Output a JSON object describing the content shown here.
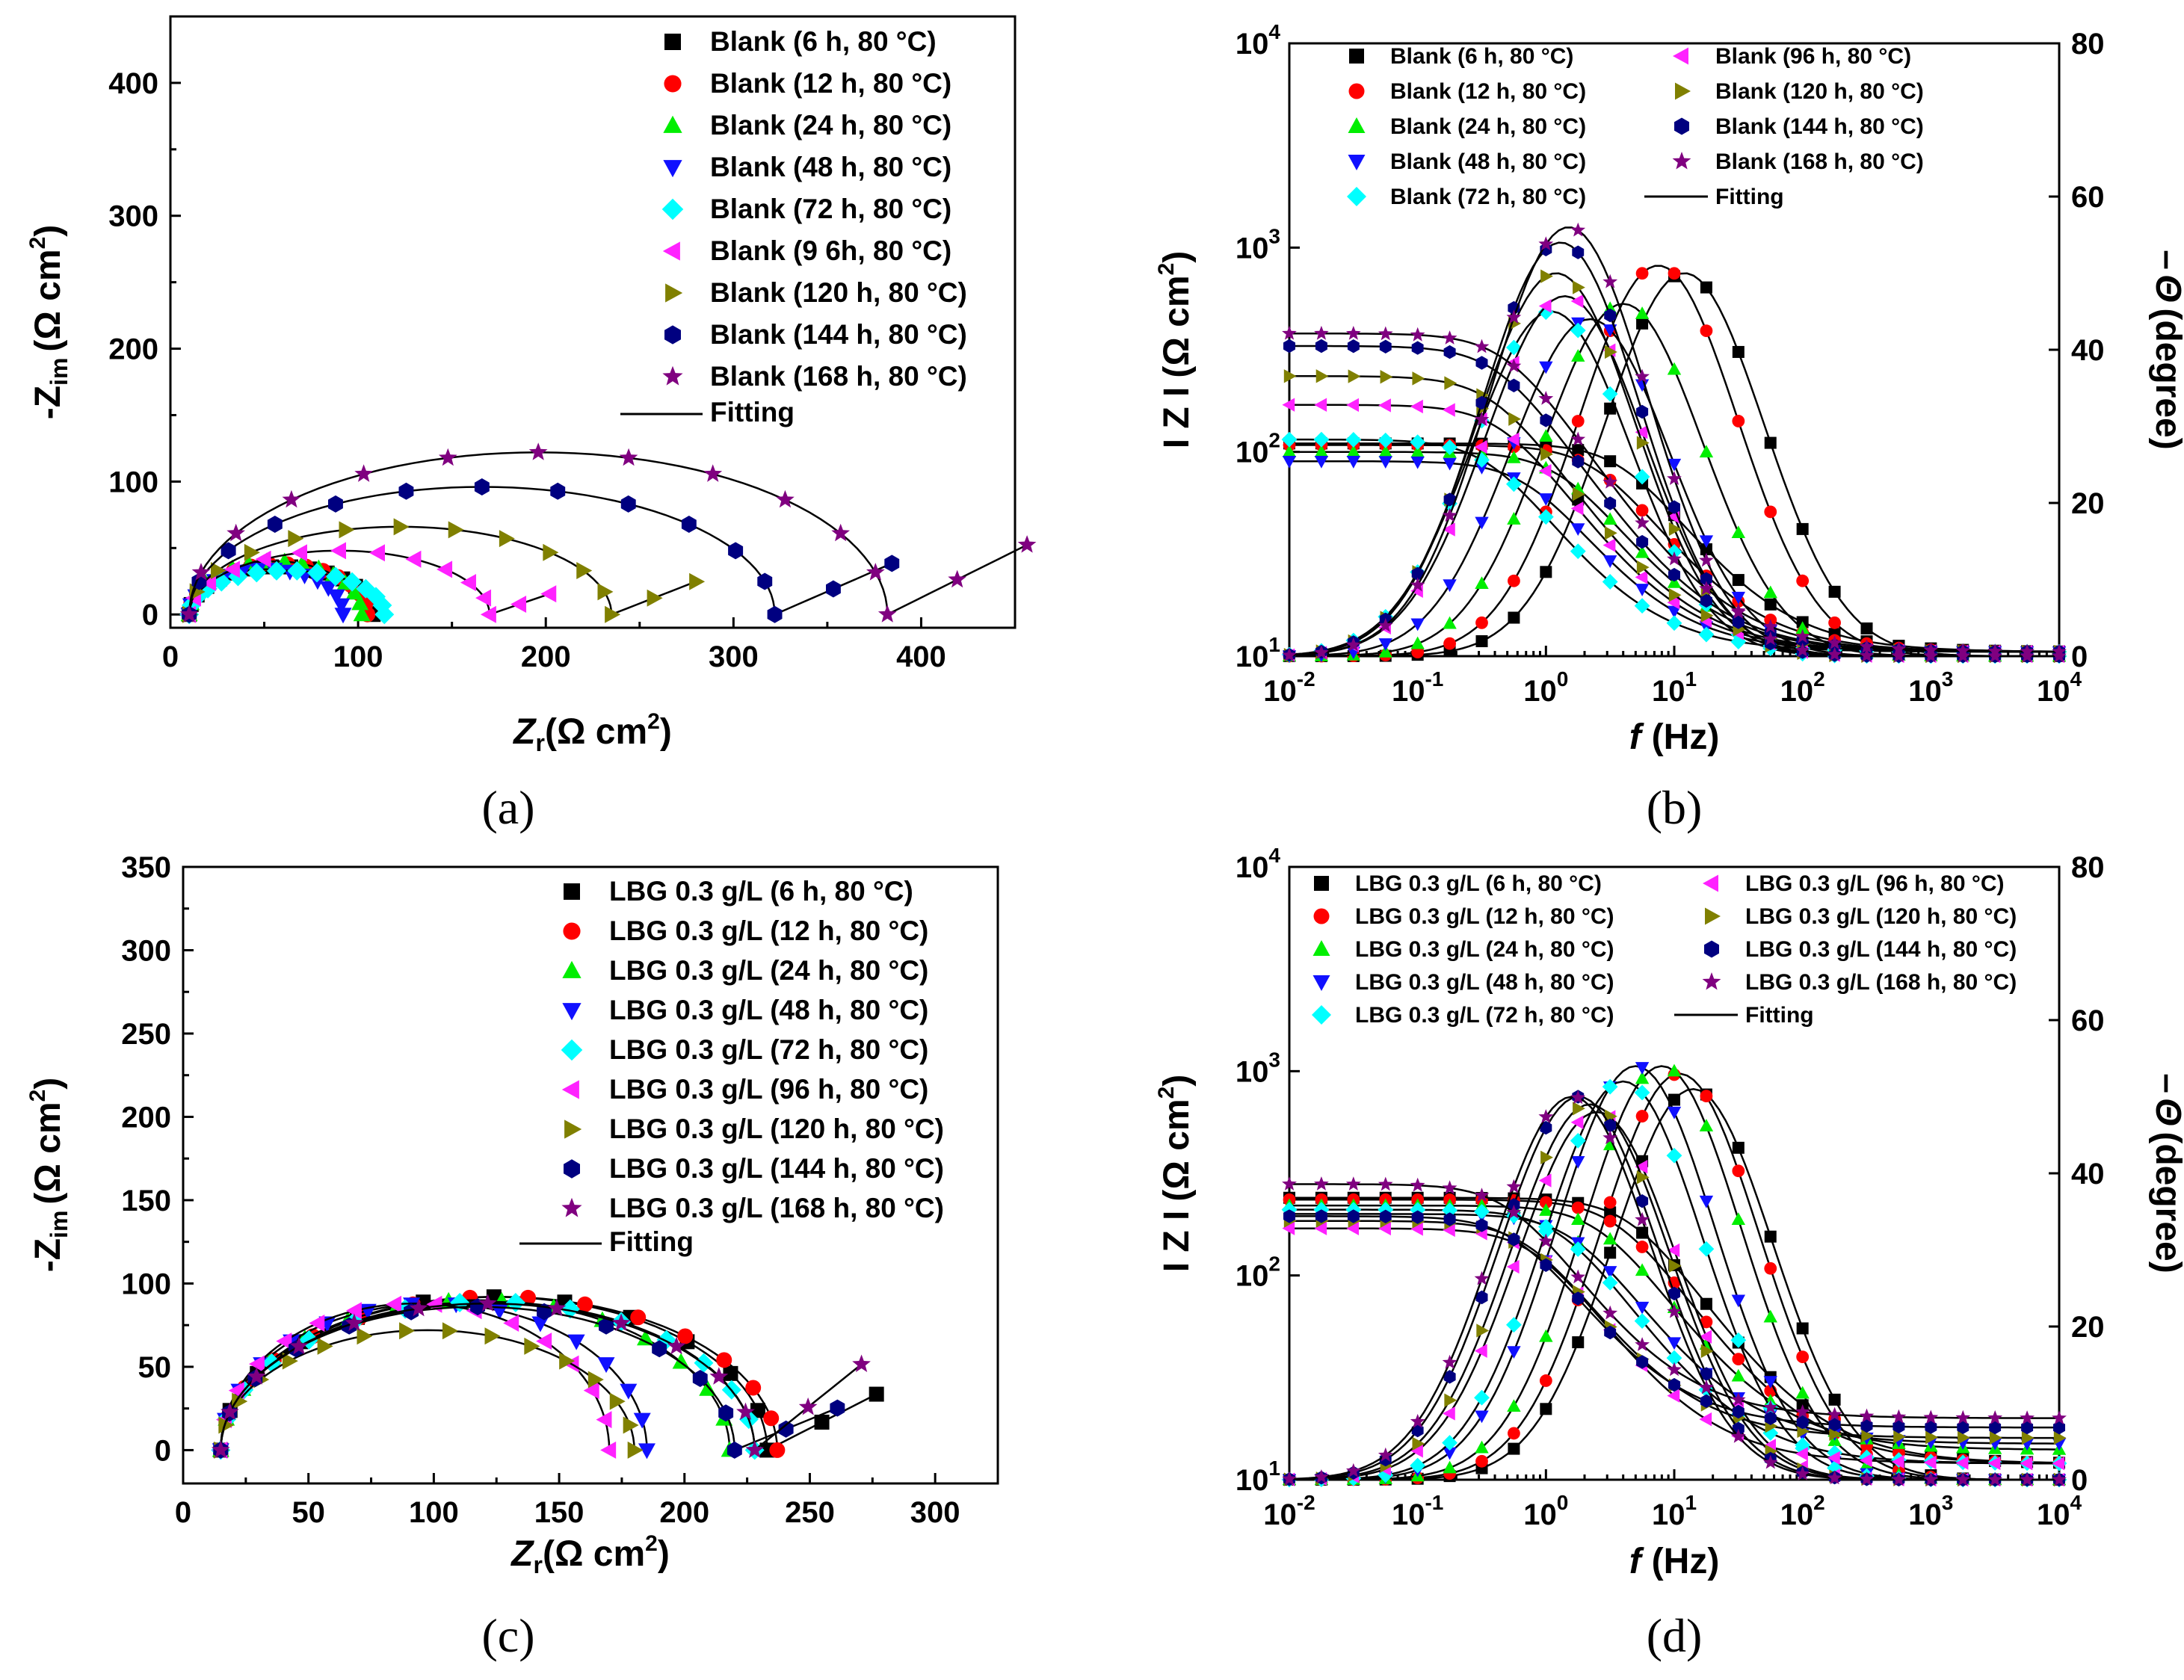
{
  "colors": {
    "black": "#000000",
    "red": "#ff0000",
    "green": "#00ee00",
    "blue": "#1010ff",
    "cyan": "#00ffff",
    "magenta": "#ff22ff",
    "olive": "#808000",
    "navy": "#000080",
    "purple": "#800080"
  },
  "chart_data": [
    {
      "type": "scatter",
      "panel_label": "(a)",
      "xlabel_main": "Z",
      "xlabel_sub": "r",
      "xlabel_unit": "(Ω cm",
      "xlabel_unit_sup": "2",
      "xlabel_close": ")",
      "ylabel_prefix": "-Z",
      "ylabel_sub": "im",
      "ylabel_unit": "(Ω cm",
      "ylabel_unit_sup": "2",
      "ylabel_close": ")",
      "xlim": [
        0,
        450
      ],
      "ylim": [
        -10,
        450
      ],
      "xticks": [
        "0",
        "100",
        "200",
        "300",
        "400"
      ],
      "yticks": [
        "0",
        "100",
        "200",
        "300",
        "400"
      ],
      "legend": [
        "Blank (6 h, 80 °C)",
        "Blank (12 h, 80 °C)",
        "Blank (24 h, 80 °C)",
        "Blank (48 h, 80 °C)",
        "Blank (72 h, 80 °C)",
        "Blank (9 6h, 80 °C)",
        "Blank (120 h, 80 °C)",
        "Blank (144 h, 80 °C)",
        "Blank (168 h, 80 °C)"
      ],
      "fit_label": "Fitting",
      "series": [
        {
          "name": "6 h",
          "color": "black",
          "marker": "square",
          "Rs": 10,
          "Rct": 98,
          "max": 36,
          "tail": 0
        },
        {
          "name": "12 h",
          "color": "red",
          "marker": "circle",
          "Rs": 10,
          "Rct": 95,
          "max": 38,
          "tail": 0
        },
        {
          "name": "24 h",
          "color": "green",
          "marker": "triangle-up",
          "Rs": 10,
          "Rct": 92,
          "max": 40,
          "tail": 0
        },
        {
          "name": "48 h",
          "color": "blue",
          "marker": "triangle-down",
          "Rs": 10,
          "Rct": 82,
          "max": 34,
          "tail": 0
        },
        {
          "name": "72 h",
          "color": "cyan",
          "marker": "diamond",
          "Rs": 10,
          "Rct": 104,
          "max": 33,
          "tail": 0
        },
        {
          "name": "96 h",
          "color": "magenta",
          "marker": "triangle-left",
          "Rs": 10,
          "Rct": 160,
          "max": 48,
          "tail": 0.22
        },
        {
          "name": "120 h",
          "color": "olive",
          "marker": "triangle-right",
          "Rs": 10,
          "Rct": 225,
          "max": 66,
          "tail": 0.25
        },
        {
          "name": "144 h",
          "color": "navy",
          "marker": "hexagon",
          "Rs": 10,
          "Rct": 312,
          "max": 96,
          "tail": 0.28
        },
        {
          "name": "168 h",
          "color": "purple",
          "marker": "star",
          "Rs": 10,
          "Rct": 372,
          "max": 122,
          "tail": 0.32
        }
      ]
    },
    {
      "type": "line",
      "panel_label": "(b)",
      "xlabel_main": "f",
      "xlabel_unit": "(Hz)",
      "ylabel_left": "I Z I",
      "ylabel_left_unit": "(Ω cm",
      "ylabel_left_sup": "2",
      "ylabel_left_close": ")",
      "ylabel_right_prefix": "–",
      "ylabel_right_theta": "Θ",
      "ylabel_right_unit": "(degree)",
      "xlim_log": [
        -2,
        4
      ],
      "ylim_log": [
        1,
        4
      ],
      "y2lim": [
        0,
        80
      ],
      "xtick_exponents": [
        "-2",
        "-1",
        "0",
        "1",
        "2",
        "3",
        "4"
      ],
      "ytick_exponents": [
        "1",
        "2",
        "3",
        "4"
      ],
      "tick_base": "10",
      "y2ticks": [
        "0",
        "20",
        "40",
        "60",
        "80"
      ],
      "legend_col1": [
        "Blank (6 h, 80 °C)",
        "Blank (12 h, 80 °C)",
        "Blank (24 h, 80 °C)",
        "Blank (48 h, 80 °C)",
        "Blank (72 h, 80 °C)"
      ],
      "legend_col2": [
        "Blank (96 h, 80 °C)",
        "Blank (120 h, 80 °C)",
        "Blank (144 h, 80 °C)",
        "Blank (168 h, 80 °C)"
      ],
      "fit_label": "Fitting",
      "series": [
        {
          "name": "6 h",
          "color": "black",
          "marker": "square",
          "Rs": 10.5,
          "Rp": 110,
          "phase_max": 50,
          "phase_fc": 12
        },
        {
          "name": "12 h",
          "color": "red",
          "marker": "circle",
          "Rs": 10.5,
          "Rp": 108,
          "phase_max": 51,
          "phase_fc": 7.5
        },
        {
          "name": "24 h",
          "color": "green",
          "marker": "triangle-up",
          "Rs": 10.5,
          "Rp": 100,
          "phase_max": 46,
          "phase_fc": 4
        },
        {
          "name": "48 h",
          "color": "blue",
          "marker": "triangle-down",
          "Rs": 10.5,
          "Rp": 90,
          "phase_max": 44,
          "phase_fc": 2.2
        },
        {
          "name": "72 h",
          "color": "cyan",
          "marker": "diamond",
          "Rs": 10.5,
          "Rp": 115,
          "phase_max": 45,
          "phase_fc": 1.1
        },
        {
          "name": "96 h",
          "color": "magenta",
          "marker": "triangle-left",
          "Rs": 10.5,
          "Rp": 170,
          "phase_max": 47,
          "phase_fc": 1.4
        },
        {
          "name": "120 h",
          "color": "olive",
          "marker": "triangle-right",
          "Rs": 10.5,
          "Rp": 235,
          "phase_max": 50,
          "phase_fc": 1.2
        },
        {
          "name": "144 h",
          "color": "navy",
          "marker": "hexagon",
          "Rs": 10.5,
          "Rp": 330,
          "phase_max": 54,
          "phase_fc": 1.3
        },
        {
          "name": "168 h",
          "color": "purple",
          "marker": "star",
          "Rs": 10.5,
          "Rp": 380,
          "phase_max": 56,
          "phase_fc": 1.5
        }
      ]
    },
    {
      "type": "scatter",
      "panel_label": "(c)",
      "xlabel_main": "Z",
      "xlabel_sub": "r",
      "xlabel_unit": "(Ω cm",
      "xlabel_unit_sup": "2",
      "xlabel_close": ")",
      "ylabel_prefix": "-Z",
      "ylabel_sub": "im",
      "ylabel_unit": "(Ω cm",
      "ylabel_unit_sup": "2",
      "ylabel_close": ")",
      "xlim": [
        0,
        325
      ],
      "ylim": [
        -20,
        350
      ],
      "xticks": [
        "0",
        "50",
        "100",
        "150",
        "200",
        "250",
        "300"
      ],
      "yticks": [
        "0",
        "50",
        "100",
        "150",
        "200",
        "250",
        "300",
        "350"
      ],
      "legend": [
        "LBG 0.3 g/L (6 h, 80 °C)",
        "LBG 0.3 g/L (12 h, 80 °C)",
        "LBG 0.3 g/L (24 h, 80 °C)",
        "LBG 0.3 g/L (48 h, 80 °C)",
        "LBG 0.3 g/L (72 h, 80 °C)",
        "LBG 0.3 g/L (96 h, 80 °C)",
        "LBG 0.3 g/L (120 h, 80 °C)",
        "LBG 0.3 g/L (144 h, 80 °C)",
        "LBG 0.3 g/L (168 h, 80 °C)"
      ],
      "fit_label": "Fitting",
      "series": [
        {
          "name": "6 h",
          "color": "black",
          "marker": "square",
          "Rs": 15,
          "Rct": 218,
          "max": 92,
          "tail": 0.35
        },
        {
          "name": "12 h",
          "color": "red",
          "marker": "circle",
          "Rs": 15,
          "Rct": 222,
          "max": 92,
          "tail": 0
        },
        {
          "name": "24 h",
          "color": "green",
          "marker": "triangle-up",
          "Rs": 15,
          "Rct": 203,
          "max": 90,
          "tail": 0
        },
        {
          "name": "48 h",
          "color": "blue",
          "marker": "triangle-down",
          "Rs": 15,
          "Rct": 170,
          "max": 88,
          "tail": 0
        },
        {
          "name": "72 h",
          "color": "cyan",
          "marker": "diamond",
          "Rs": 15,
          "Rct": 213,
          "max": 89,
          "tail": 0
        },
        {
          "name": "96 h",
          "color": "magenta",
          "marker": "triangle-left",
          "Rs": 15,
          "Rct": 155,
          "max": 88,
          "tail": 0
        },
        {
          "name": "120 h",
          "color": "olive",
          "marker": "triangle-right",
          "Rs": 15,
          "Rct": 165,
          "max": 72,
          "tail": 0
        },
        {
          "name": "144 h",
          "color": "navy",
          "marker": "hexagon",
          "Rs": 15,
          "Rct": 205,
          "max": 86,
          "tail": 0.28
        },
        {
          "name": "168 h",
          "color": "purple",
          "marker": "star",
          "Rs": 15,
          "Rct": 213,
          "max": 88,
          "tail": 0.55
        }
      ]
    },
    {
      "type": "line",
      "panel_label": "(d)",
      "xlabel_main": "f",
      "xlabel_unit": "(Hz)",
      "ylabel_left": "I Z I",
      "ylabel_left_unit": "(Ω cm",
      "ylabel_left_sup": "2",
      "ylabel_left_close": ")",
      "ylabel_right_prefix": "–",
      "ylabel_right_theta": "Θ",
      "ylabel_right_unit": "(degree)",
      "xlim_log": [
        -2,
        4
      ],
      "ylim_log": [
        1,
        4
      ],
      "y2lim": [
        0,
        80
      ],
      "xtick_exponents": [
        "-2",
        "-1",
        "0",
        "1",
        "2",
        "3",
        "4"
      ],
      "ytick_exponents": [
        "1",
        "2",
        "3",
        "4"
      ],
      "tick_base": "10",
      "y2ticks": [
        "0",
        "20",
        "40",
        "60",
        "80"
      ],
      "legend_col1": [
        "LBG 0.3 g/L (6 h, 80 °C)",
        "LBG 0.3 g/L (12 h, 80 °C)",
        "LBG 0.3 g/L (24 h, 80 °C)",
        "LBG 0.3 g/L (48 h, 80 °C)",
        "LBG 0.3 g/L (72 h, 80 °C)"
      ],
      "legend_col2": [
        "LBG 0.3 g/L (96 h, 80 °C)",
        "LBG 0.3 g/L (120 h, 80 °C)",
        "LBG 0.3 g/L (144 h, 80 °C)",
        "LBG 0.3 g/L (168 h, 80 °C)"
      ],
      "fit_label": "Fitting",
      "series": [
        {
          "name": "6 h",
          "color": "black",
          "marker": "square",
          "Rs": 12,
          "Rp": 240,
          "phase_max": 51,
          "phase_fc": 14
        },
        {
          "name": "12 h",
          "color": "red",
          "marker": "circle",
          "Rs": 12,
          "Rp": 235,
          "phase_max": 53,
          "phase_fc": 11
        },
        {
          "name": "24 h",
          "color": "green",
          "marker": "triangle-up",
          "Rs": 14,
          "Rp": 220,
          "phase_max": 54,
          "phase_fc": 8
        },
        {
          "name": "48 h",
          "color": "blue",
          "marker": "triangle-down",
          "Rs": 15,
          "Rp": 200,
          "phase_max": 54,
          "phase_fc": 5
        },
        {
          "name": "72 h",
          "color": "cyan",
          "marker": "diamond",
          "Rs": 12,
          "Rp": 210,
          "phase_max": 52,
          "phase_fc": 4
        },
        {
          "name": "96 h",
          "color": "magenta",
          "marker": "triangle-left",
          "Rs": 12,
          "Rp": 170,
          "phase_max": 48,
          "phase_fc": 2.5
        },
        {
          "name": "120 h",
          "color": "olive",
          "marker": "triangle-right",
          "Rs": 16,
          "Rp": 185,
          "phase_max": 49,
          "phase_fc": 2.2
        },
        {
          "name": "144 h",
          "color": "navy",
          "marker": "hexagon",
          "Rs": 18,
          "Rp": 195,
          "phase_max": 50,
          "phase_fc": 1.8
        },
        {
          "name": "168 h",
          "color": "purple",
          "marker": "star",
          "Rs": 20,
          "Rp": 280,
          "phase_max": 50,
          "phase_fc": 1.6
        }
      ]
    }
  ]
}
